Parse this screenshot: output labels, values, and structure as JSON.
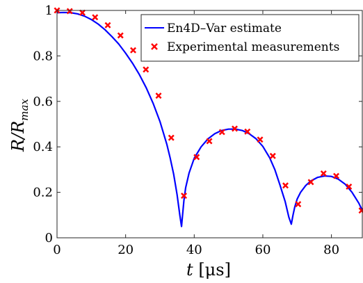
{
  "chart_data": {
    "type": "line",
    "xlabel": "t [μs]",
    "ylabel": "R/R_max",
    "ylabel_main": "R/R",
    "ylabel_sub": "max",
    "xlim": [
      0,
      89
    ],
    "ylim": [
      0,
      1
    ],
    "x_ticks": [
      0,
      20,
      40,
      60,
      80
    ],
    "y_ticks": [
      0,
      0.2,
      0.4,
      0.6,
      0.8,
      1
    ],
    "x_tick_labels": [
      "0",
      "20",
      "40",
      "60",
      "80"
    ],
    "y_tick_labels": [
      "0",
      "0.2",
      "0.4",
      "0.6",
      "0.8",
      "1"
    ],
    "grid": false,
    "legend_position": "top-right",
    "series": [
      {
        "name": "En4D–Var estimate",
        "kind": "line",
        "color": "#0000ff",
        "x": [
          0,
          2,
          4,
          6,
          8,
          10,
          12,
          14,
          16,
          18,
          20,
          22,
          24,
          26,
          28,
          30,
          32,
          33,
          34,
          35,
          35.8,
          36.3,
          36.6,
          37.0,
          37.5,
          38.5,
          40,
          42,
          44,
          46,
          48,
          50,
          52,
          54,
          56,
          58,
          60,
          62,
          63.5,
          65,
          66.5,
          67.6,
          68.3,
          68.8,
          69.3,
          70,
          71,
          72.5,
          74,
          76,
          78,
          80,
          82,
          84,
          86,
          88,
          89
        ],
        "y": [
          0.99,
          0.991,
          0.99,
          0.985,
          0.975,
          0.96,
          0.94,
          0.915,
          0.885,
          0.852,
          0.812,
          0.768,
          0.718,
          0.66,
          0.592,
          0.512,
          0.412,
          0.35,
          0.28,
          0.19,
          0.1,
          0.05,
          0.1,
          0.165,
          0.22,
          0.285,
          0.35,
          0.4,
          0.435,
          0.458,
          0.472,
          0.478,
          0.478,
          0.472,
          0.458,
          0.436,
          0.402,
          0.352,
          0.3,
          0.232,
          0.16,
          0.09,
          0.06,
          0.1,
          0.135,
          0.17,
          0.2,
          0.23,
          0.25,
          0.266,
          0.272,
          0.27,
          0.258,
          0.236,
          0.2,
          0.152,
          0.12
        ]
      },
      {
        "name": "Experimental measurements",
        "kind": "scatter",
        "color": "#ff0000",
        "marker": "x",
        "x": [
          0,
          3.7,
          7.4,
          11.1,
          14.8,
          18.5,
          22.2,
          25.9,
          29.6,
          33.3,
          37.0,
          40.7,
          44.4,
          48.1,
          51.8,
          55.5,
          59.2,
          62.9,
          66.6,
          70.3,
          74.0,
          77.7,
          81.4,
          85.1,
          88.8
        ],
        "y": [
          1.0,
          0.997,
          0.99,
          0.97,
          0.935,
          0.89,
          0.825,
          0.74,
          0.625,
          0.44,
          0.185,
          0.355,
          0.425,
          0.465,
          0.48,
          0.467,
          0.432,
          0.36,
          0.23,
          0.148,
          0.245,
          0.283,
          0.272,
          0.225,
          0.12
        ]
      }
    ]
  }
}
